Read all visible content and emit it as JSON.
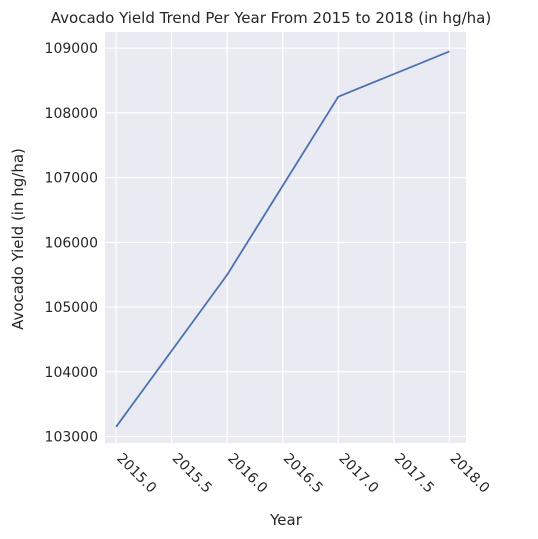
{
  "chart_data": {
    "type": "line",
    "title": "Avocado Yield Trend Per Year From 2015 to 2018 (in hg/ha)",
    "xlabel": "Year",
    "ylabel": "Avocado Yield (in hg/ha)",
    "x": [
      2015,
      2016,
      2017,
      2018
    ],
    "series": [
      {
        "values": [
          103150,
          105500,
          108250,
          108950
        ]
      }
    ],
    "xlim": [
      2014.9,
      2018.15
    ],
    "ylim": [
      102900,
      109250
    ],
    "xticks": [
      2015.0,
      2015.5,
      2016.0,
      2016.5,
      2017.0,
      2017.5,
      2018.0
    ],
    "xtick_labels": [
      "2015.0",
      "2015.5",
      "2016.0",
      "2016.5",
      "2017.0",
      "2017.5",
      "2018.0"
    ],
    "yticks": [
      103000,
      104000,
      105000,
      106000,
      107000,
      108000,
      109000
    ],
    "ytick_labels": [
      "103000",
      "104000",
      "105000",
      "106000",
      "107000",
      "108000",
      "109000"
    ],
    "grid": true,
    "colors": {
      "background": "#eaeaf2",
      "grid": "#ffffff",
      "line": "#4c72b0"
    }
  }
}
